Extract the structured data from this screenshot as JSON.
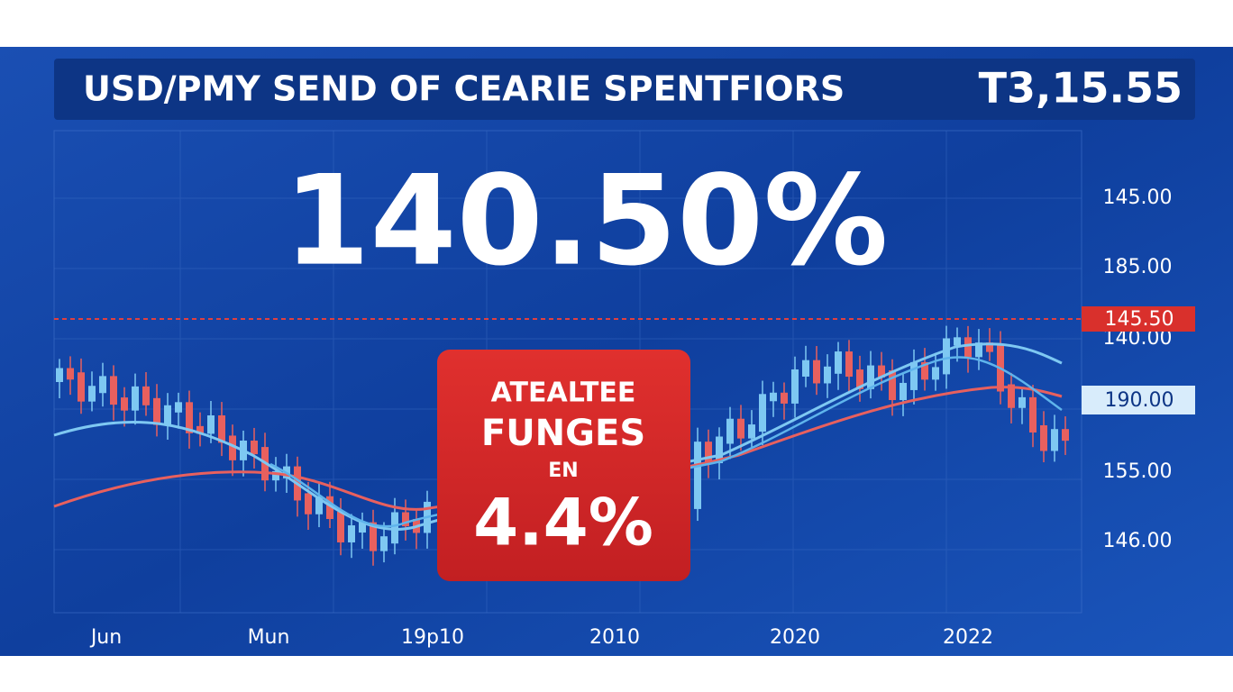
{
  "header": {
    "title": "USD/PMY SEND OF CEARIE SPENTFIORS",
    "value": "T3,15.55"
  },
  "headline": "140.50%",
  "badge": {
    "lines": [
      "ATEALTEE",
      "FUNGES",
      "EN",
      "4.4%"
    ]
  },
  "y_labels": [
    "145.00",
    "185.00",
    "140.00",
    "155.00",
    "146.00"
  ],
  "price_tags": [
    "145.50",
    "190.00"
  ],
  "x_labels": [
    "Jun",
    "Mun",
    "19p10",
    "2010",
    "2020",
    "2022"
  ]
}
